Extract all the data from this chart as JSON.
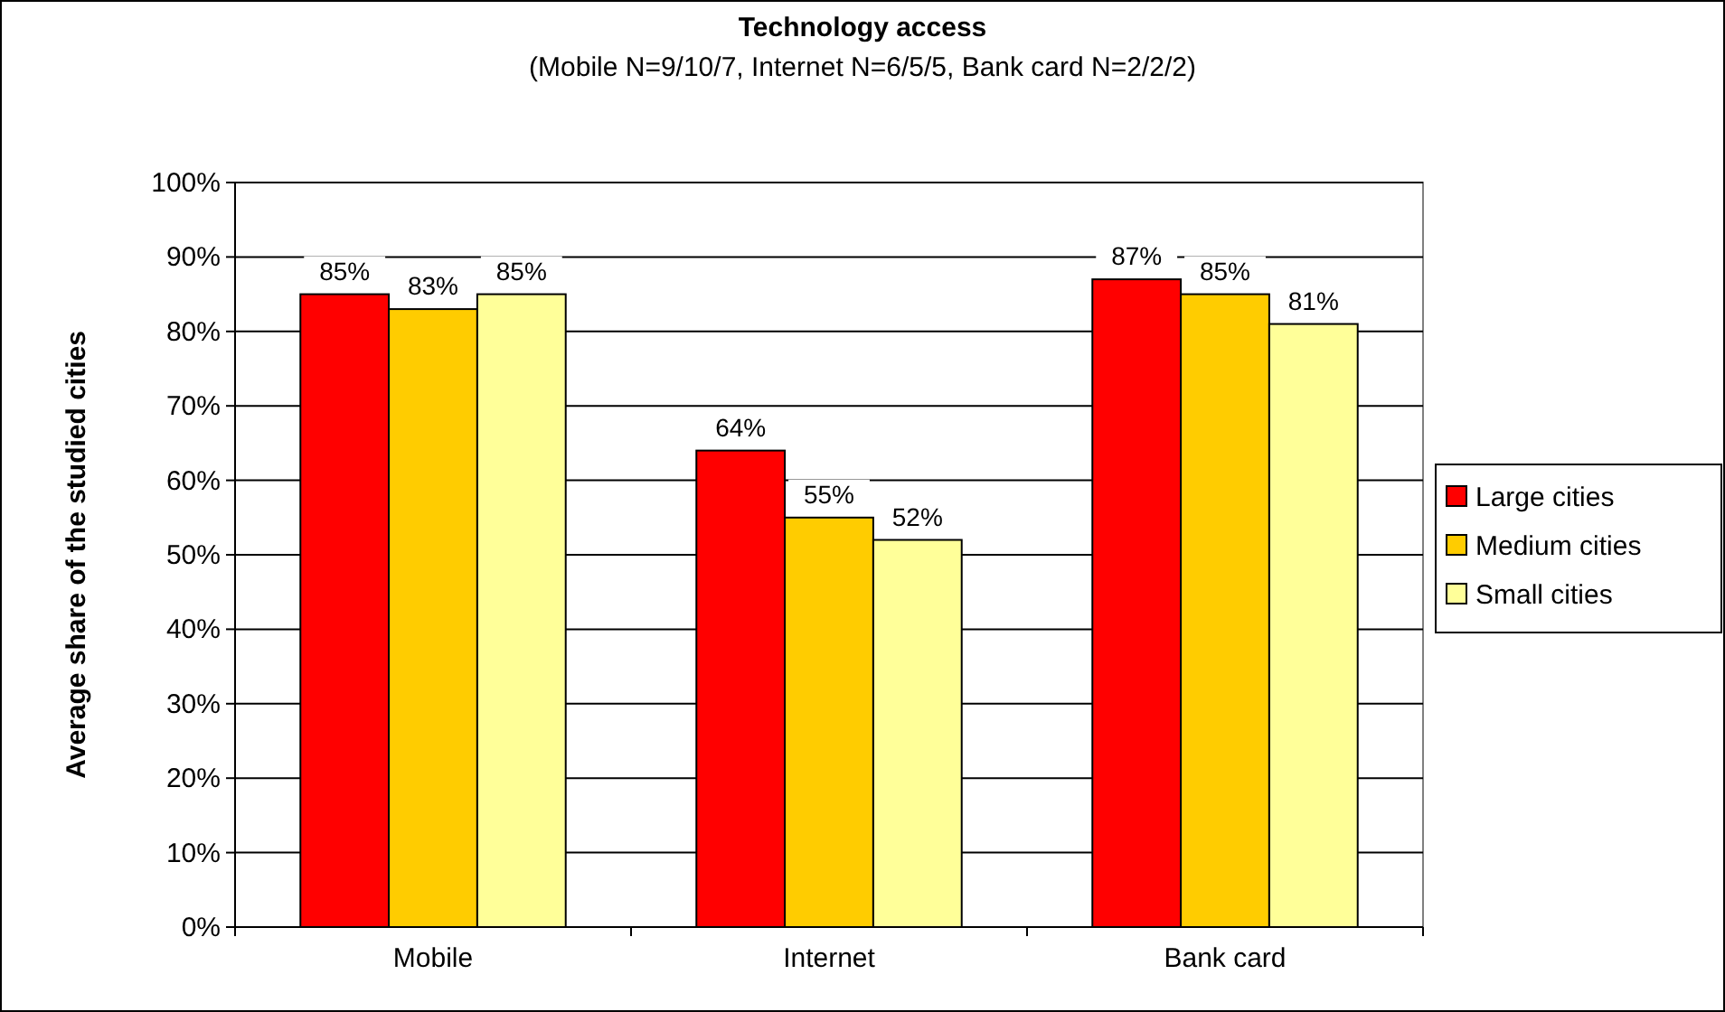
{
  "chart_data": {
    "type": "bar",
    "title": "Technology access",
    "subtitle": "(Mobile N=9/10/7, Internet N=6/5/5, Bank card N=2/2/2)",
    "ylabel": "Average share of the studied cities",
    "categories": [
      "Mobile",
      "Internet",
      "Bank card"
    ],
    "series": [
      {
        "name": "Large cities",
        "color": "#ff0000",
        "values": [
          85,
          64,
          87
        ],
        "value_labels": [
          "85%",
          "64%",
          "87%"
        ]
      },
      {
        "name": "Medium cities",
        "color": "#ffcc00",
        "values": [
          83,
          55,
          85
        ],
        "value_labels": [
          "83%",
          "55%",
          "85%"
        ]
      },
      {
        "name": "Small cities",
        "color": "#ffff99",
        "values": [
          85,
          52,
          81
        ],
        "value_labels": [
          "85%",
          "52%",
          "81%"
        ]
      }
    ],
    "ylim": [
      0,
      100
    ],
    "yticks": [
      {
        "value": 0,
        "label": "0%"
      },
      {
        "value": 10,
        "label": "10%"
      },
      {
        "value": 20,
        "label": "20%"
      },
      {
        "value": 30,
        "label": "30%"
      },
      {
        "value": 40,
        "label": "40%"
      },
      {
        "value": 50,
        "label": "50%"
      },
      {
        "value": 60,
        "label": "60%"
      },
      {
        "value": 70,
        "label": "70%"
      },
      {
        "value": 80,
        "label": "80%"
      },
      {
        "value": 90,
        "label": "90%"
      },
      {
        "value": 100,
        "label": "100%"
      }
    ],
    "grid": "y",
    "legend": "right"
  }
}
